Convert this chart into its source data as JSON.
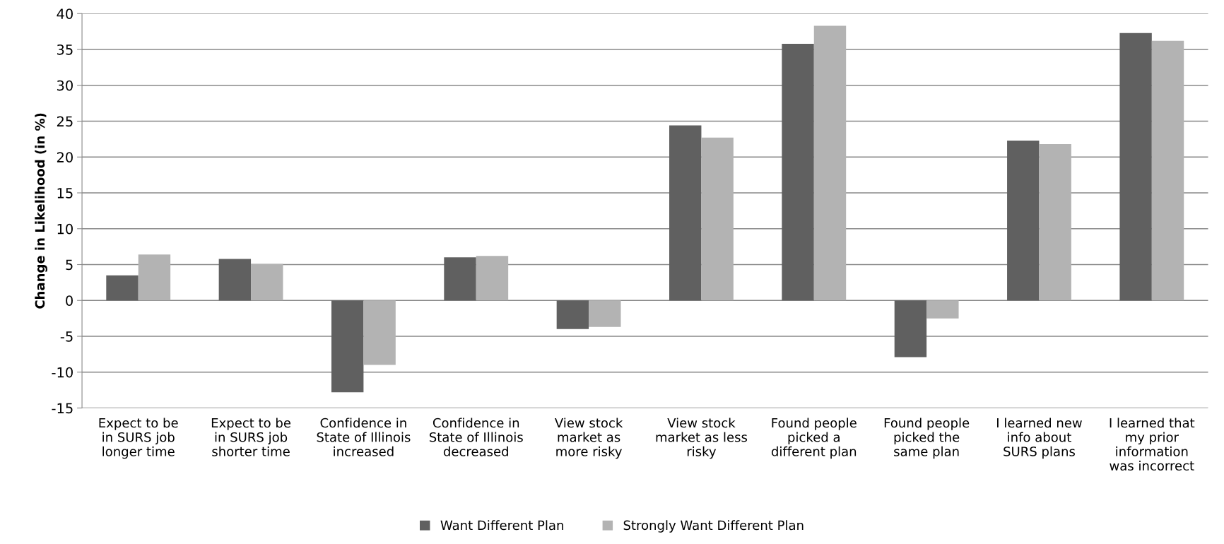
{
  "chart_data": {
    "type": "bar",
    "ylabel": "Change in Likelihood (in %)",
    "categories": [
      "Expect to be\nin SURS job\nlonger time",
      "Expect to be\nin SURS job\nshorter time",
      "Confidence in\nState of Illinois\nincreased",
      "Confidence in\nState of Illinois\ndecreased",
      "View stock\nmarket as\nmore risky",
      "View stock\nmarket as less\nrisky",
      "Found people\npicked a\ndifferent plan",
      "Found people\npicked the\nsame plan",
      "I learned new\ninfo about\nSURS plans",
      "I learned that\nmy prior\ninformation\nwas incorrect"
    ],
    "series": [
      {
        "name": "Want Different Plan",
        "color": "#606060",
        "values": [
          3.5,
          5.8,
          -12.8,
          6.0,
          -4.0,
          24.4,
          35.8,
          -7.9,
          22.3,
          37.3
        ]
      },
      {
        "name": "Strongly Want Different Plan",
        "color": "#b3b3b3",
        "values": [
          6.4,
          5.1,
          -9.0,
          6.2,
          -3.7,
          22.7,
          38.3,
          -2.5,
          21.8,
          36.2
        ]
      }
    ],
    "ylim": [
      -15,
      40
    ],
    "yticks": [
      -15,
      -10,
      -5,
      0,
      5,
      10,
      15,
      20,
      25,
      30,
      35,
      40
    ],
    "grid": "y",
    "legend": "bottom"
  }
}
